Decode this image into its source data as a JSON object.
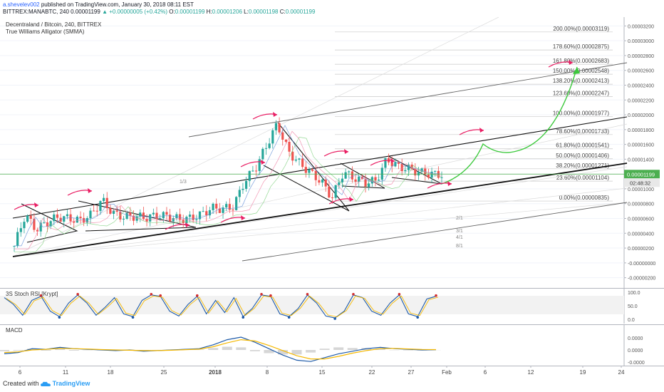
{
  "header": {
    "author": "a.shevelev002",
    "published": "published on TradingView.com, January 30, 2018 08:11 EST",
    "symbol": "BITTREX:MANABTC, 240",
    "last": "0.00001199",
    "change": "▲ +0.00000005 (+0.42%)",
    "o_label": "O:",
    "o_value": "0.00001199",
    "h_label": "H:",
    "h_value": "0.00001206",
    "l_label": "L:",
    "l_value": "0.00001198",
    "c_label": "C:",
    "c_value": "0.00001199"
  },
  "legend": {
    "title": "Decentraland / Bitcoin, 240, BITTREX",
    "indicator": "True Williams Alligator (SMMA)",
    "stoch_label": "3S Stoch RSI [Krypt]",
    "macd_label": "MACD"
  },
  "footer": {
    "created": "Created with",
    "brand": "TradingView"
  },
  "colors": {
    "up": "#26a69a",
    "down": "#ef5350",
    "price_line": "#4caf50",
    "arrow": "#e91e63",
    "projection": "#3cc93c",
    "macd": "#1e5aa8",
    "signal": "#f5b800"
  },
  "chart_data": [
    {
      "type": "candlestick",
      "name": "MANABTC price",
      "y_axis_ticks": [
        "0.00003200",
        "0.00003000",
        "0.00002800",
        "0.00002600",
        "0.00002400",
        "0.00002200",
        "0.00002000",
        "0.00001800",
        "0.00001600",
        "0.00001400",
        "0.00001200",
        "0.00001000",
        "0.00000800",
        "0.00000600",
        "0.00000400",
        "0.00000200",
        "-0.00000000",
        "-0.00000200"
      ],
      "x_axis_ticks": [
        "6",
        "11",
        "18",
        "25",
        "2018",
        "8",
        "15",
        "22",
        "27",
        "Feb",
        "6",
        "12",
        "19",
        "24"
      ],
      "ylim": [
        -3e-06,
        3.3e-05
      ],
      "price_badge": "0.00001199",
      "countdown_badge": "02:48:32",
      "close_path": [
        [
          0,
          2.3e-06
        ],
        [
          1,
          6.5e-06
        ],
        [
          2,
          4.5e-06
        ],
        [
          3,
          5.5e-06
        ],
        [
          4,
          6.2e-06
        ],
        [
          5,
          6e-06
        ],
        [
          6,
          5.7e-06
        ],
        [
          7,
          6.5e-06
        ],
        [
          8,
          8.5e-06
        ],
        [
          9,
          6.7e-06
        ],
        [
          10,
          6.2e-06
        ],
        [
          11,
          6.3e-06
        ],
        [
          12,
          6.1e-06
        ],
        [
          13,
          6.4e-06
        ],
        [
          14,
          6.3e-06
        ],
        [
          15,
          5.9e-06
        ],
        [
          16,
          6e-06
        ],
        [
          17,
          6.5e-06
        ],
        [
          18,
          7.4e-06
        ],
        [
          19,
          7.3e-06
        ],
        [
          20,
          7.6e-06
        ],
        [
          21,
          1.1e-05
        ],
        [
          22,
          1.28e-05
        ],
        [
          23,
          1.58e-05
        ],
        [
          24,
          1.88e-05
        ],
        [
          25,
          1.5e-05
        ],
        [
          26,
          1.35e-05
        ],
        [
          27,
          1.22e-05
        ],
        [
          28,
          1.1e-05
        ],
        [
          29,
          8.8e-06
        ],
        [
          30,
          1.22e-05
        ],
        [
          31,
          1.15e-05
        ],
        [
          32,
          1.08e-05
        ],
        [
          33,
          1.11e-05
        ],
        [
          34,
          1.4e-05
        ],
        [
          35,
          1.3e-05
        ],
        [
          36,
          1.27e-05
        ],
        [
          37,
          1.22e-05
        ],
        [
          38,
          1.2e-05
        ],
        [
          39,
          1.19e-05
        ]
      ],
      "fib_levels": [
        {
          "label": "200.00%(0.00003119)",
          "value": 3.119e-05
        },
        {
          "label": "178.60%(0.00002875)",
          "value": 2.875e-05
        },
        {
          "label": "161.80%(0.00002683)",
          "value": 2.683e-05
        },
        {
          "label": "150.00%(0.00002548)",
          "value": 2.548e-05
        },
        {
          "label": "138.20%(0.00002413)",
          "value": 2.413e-05
        },
        {
          "label": "123.60%(0.00002247)",
          "value": 2.247e-05
        },
        {
          "label": "100.00%(0.00001977)",
          "value": 1.977e-05
        },
        {
          "label": "78.60%(0.00001733)",
          "value": 1.733e-05
        },
        {
          "label": "61.80%(0.00001541)",
          "value": 1.541e-05
        },
        {
          "label": "50.00%(0.00001406)",
          "value": 1.406e-05
        },
        {
          "label": "38.20%(0.00001271)",
          "value": 1.271e-05
        },
        {
          "label": "23.60%(0.00001104)",
          "value": 1.104e-05
        },
        {
          "label": "0.00%(0.00000835)",
          "value": 8.35e-06
        }
      ],
      "gann_labels": [
        "1/3",
        "2/1",
        "3/1",
        "4/1",
        "8/1"
      ],
      "annotations": [
        "projected upward path (green)",
        "trend channel",
        "descending wedges"
      ]
    },
    {
      "type": "line",
      "name": "3S Stoch RSI [Krypt]",
      "y_axis_ticks": [
        "100.0",
        "50.0",
        "0.0"
      ],
      "ylim": [
        0,
        100
      ],
      "k_values": [
        80,
        55,
        15,
        70,
        85,
        30,
        10,
        60,
        90,
        60,
        15,
        45,
        80,
        20,
        10,
        70,
        90,
        85,
        30,
        12,
        55,
        85,
        20,
        70,
        25,
        80,
        10,
        40,
        90,
        85,
        20,
        10,
        40,
        90,
        60,
        12,
        5,
        30,
        90,
        80,
        30,
        15,
        60,
        90,
        20,
        10,
        75,
        85
      ]
    },
    {
      "type": "line",
      "name": "MACD",
      "y_axis_ticks": [
        "0.0000",
        "0.0000",
        "-0.0000"
      ],
      "macd_values": [
        -0.3,
        -0.2,
        0.1,
        0.05,
        0.2,
        0.1,
        0.05,
        0.0,
        -0.05,
        0.0,
        -0.1,
        -0.05,
        0.0,
        0.05,
        0.1,
        0.4,
        0.8,
        1.0,
        0.6,
        0.1,
        -0.4,
        -0.8,
        -0.9,
        -0.6,
        -0.3,
        -0.1,
        0.1,
        0.2,
        0.1,
        0.05,
        0.0,
        0.02
      ],
      "signal_values": [
        -0.2,
        -0.15,
        0.0,
        0.05,
        0.12,
        0.1,
        0.07,
        0.03,
        0.0,
        -0.02,
        -0.05,
        -0.05,
        -0.02,
        0.02,
        0.06,
        0.25,
        0.55,
        0.8,
        0.7,
        0.35,
        -0.05,
        -0.45,
        -0.7,
        -0.7,
        -0.5,
        -0.25,
        -0.05,
        0.1,
        0.12,
        0.08,
        0.04,
        0.03
      ]
    }
  ]
}
